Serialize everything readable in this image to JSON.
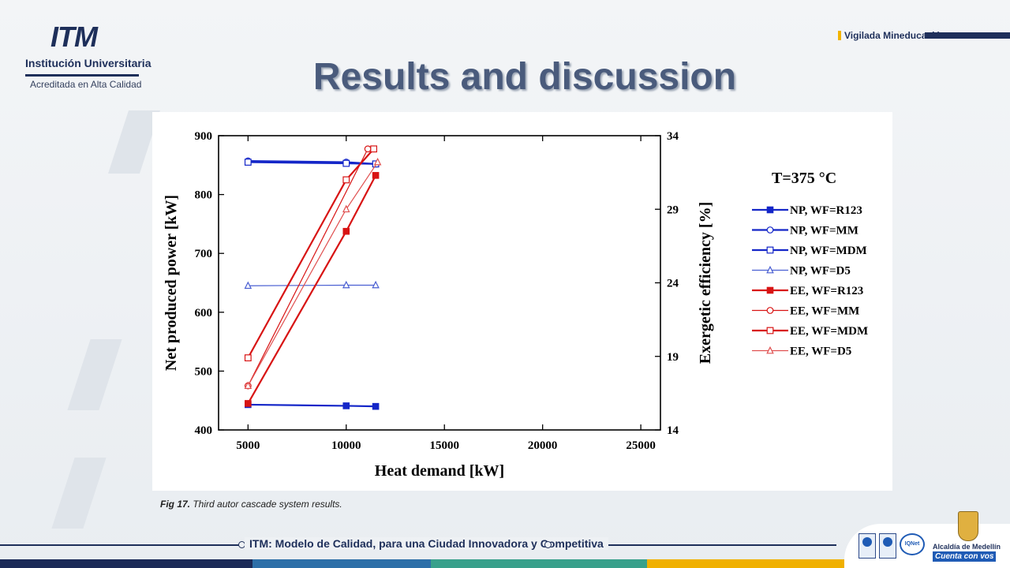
{
  "header": {
    "logo_mark": "ITM",
    "logo_name": "Institución Universitaria",
    "logo_sub": "Acreditada en Alta Calidad",
    "vigilada": "Vigilada Mineducación",
    "title": "Results and discussion"
  },
  "caption": {
    "label": "Fig 17.",
    "text": " Third autor cascade system results."
  },
  "footer": {
    "text": "ITM: Modelo de Calidad, para una Ciudad Innovadora y Competitiva",
    "iqnet": "IQNet",
    "alcaldia": "Alcaldía de Medellín",
    "cuenta": "Cuenta con vos",
    "colors": [
      "#1b2a58",
      "#2d6fa8",
      "#38a08b",
      "#f0b000"
    ]
  },
  "chart_data": {
    "type": "line",
    "xlabel": "Heat demand [kW]",
    "ylabel": "Net produced power [kW]",
    "y2label": "Exergetic efficiency [%]",
    "xlim": [
      3500,
      26000
    ],
    "ylim": [
      400,
      900
    ],
    "y2lim": [
      14,
      34
    ],
    "xticks": [
      5000,
      10000,
      15000,
      20000,
      25000
    ],
    "yticks": [
      400,
      500,
      600,
      700,
      800,
      900
    ],
    "y2ticks": [
      14,
      19,
      24,
      29,
      34
    ],
    "grid": false,
    "legend_title": "T=375 °C",
    "legend_position": "right",
    "series": [
      {
        "name": "NP, WF=R123",
        "axis": "left",
        "color": "#1426c8",
        "marker": "square-filled",
        "width": 2.2,
        "x": [
          5000,
          10000,
          11500
        ],
        "y": [
          443,
          441,
          440
        ]
      },
      {
        "name": "NP, WF=MM",
        "axis": "left",
        "color": "#1426c8",
        "marker": "circle-open",
        "width": 2.2,
        "x": [
          5000,
          10000,
          11500
        ],
        "y": [
          857,
          855,
          852
        ]
      },
      {
        "name": "NP, WF=MDM",
        "axis": "left",
        "color": "#1426c8",
        "marker": "square-open",
        "width": 2.2,
        "x": [
          5000,
          10000,
          11500
        ],
        "y": [
          855,
          853,
          852
        ]
      },
      {
        "name": "NP, WF=D5",
        "axis": "left",
        "color": "#4a5fd2",
        "marker": "triangle-open",
        "width": 1.2,
        "x": [
          5000,
          10000,
          11500
        ],
        "y": [
          645,
          646,
          646
        ]
      },
      {
        "name": "EE, WF=R123",
        "axis": "right",
        "color": "#d81414",
        "marker": "square-filled",
        "width": 2.2,
        "x": [
          5000,
          10000,
          11500
        ],
        "y": [
          15.8,
          27.5,
          31.3
        ]
      },
      {
        "name": "EE, WF=MM",
        "axis": "right",
        "color": "#d81414",
        "marker": "circle-open",
        "width": 1.2,
        "x": [
          5000,
          11100
        ],
        "y": [
          17.0,
          33.1
        ]
      },
      {
        "name": "EE, WF=MDM",
        "axis": "right",
        "color": "#d81414",
        "marker": "square-open",
        "width": 2.2,
        "x": [
          5000,
          10000,
          11400
        ],
        "y": [
          18.9,
          31.0,
          33.1
        ]
      },
      {
        "name": "EE, WF=D5",
        "axis": "right",
        "color": "#e05050",
        "marker": "triangle-open",
        "width": 1.2,
        "x": [
          5000,
          10000,
          11600
        ],
        "y": [
          17.0,
          29.0,
          32.2
        ]
      }
    ]
  }
}
